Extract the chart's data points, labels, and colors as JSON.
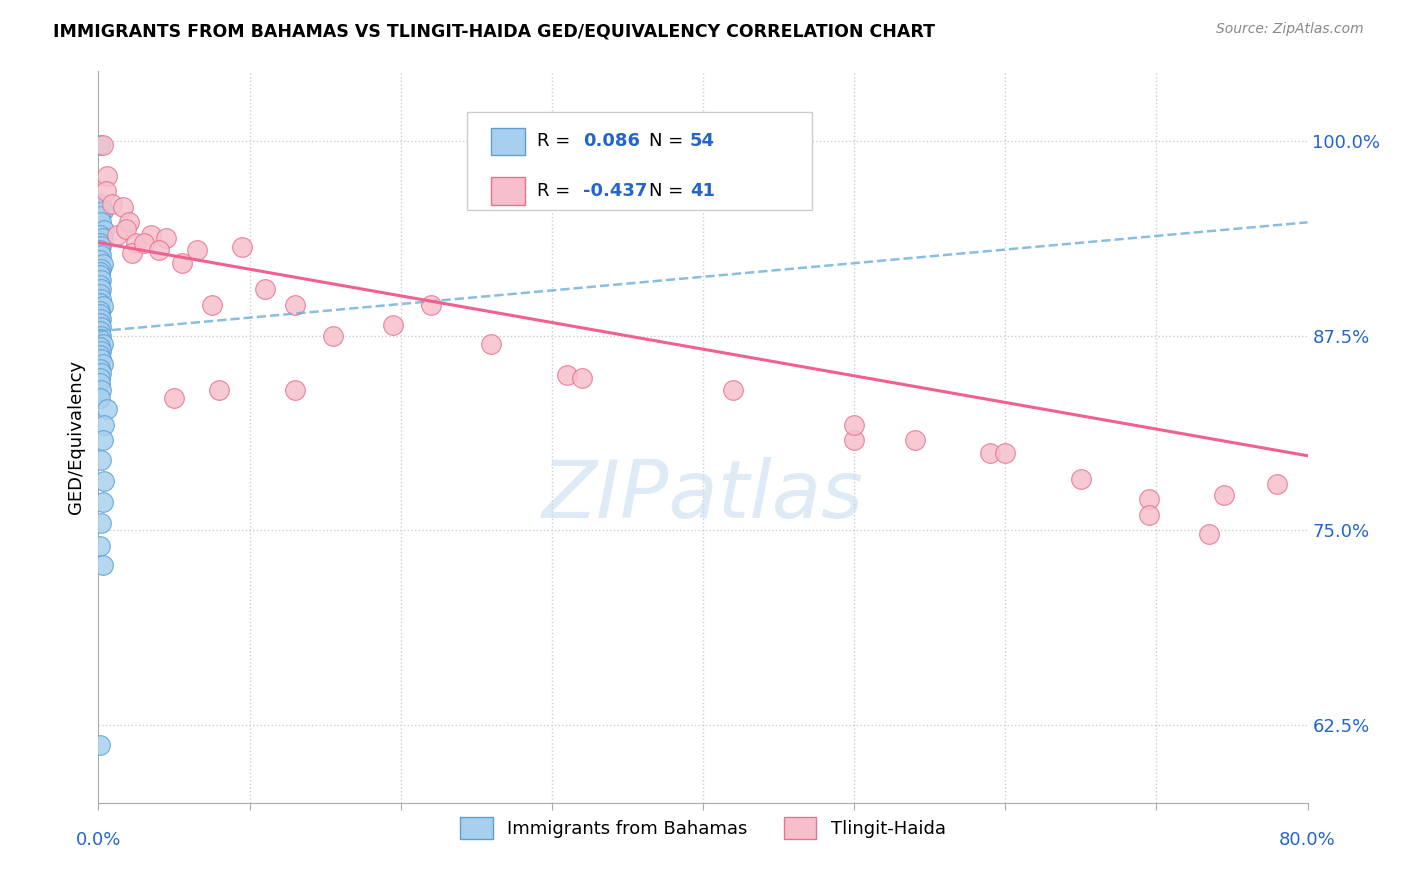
{
  "title": "IMMIGRANTS FROM BAHAMAS VS TLINGIT-HAIDA GED/EQUIVALENCY CORRELATION CHART",
  "source": "Source: ZipAtlas.com",
  "ylabel": "GED/Equivalency",
  "yticks": [
    0.625,
    0.75,
    0.875,
    1.0
  ],
  "ytick_labels": [
    "62.5%",
    "75.0%",
    "87.5%",
    "100.0%"
  ],
  "xmin": 0.0,
  "xmax": 0.8,
  "ymin": 0.575,
  "ymax": 1.045,
  "color_blue": "#A8D0EE",
  "color_blue_edge": "#5B9FD4",
  "color_pink": "#F5C0CC",
  "color_pink_edge": "#E87090",
  "color_trendline_blue": "#6AAED6",
  "color_trendline_pink": "#F06090",
  "watermark_color": "#C8DCF0",
  "blue_x": [
    0.001,
    0.002,
    0.003,
    0.001,
    0.002,
    0.004,
    0.001,
    0.003,
    0.001,
    0.002,
    0.001,
    0.002,
    0.001,
    0.003,
    0.002,
    0.001,
    0.001,
    0.002,
    0.001,
    0.002,
    0.001,
    0.002,
    0.001,
    0.003,
    0.001,
    0.001,
    0.002,
    0.001,
    0.002,
    0.001,
    0.002,
    0.001,
    0.003,
    0.001,
    0.002,
    0.001,
    0.002,
    0.003,
    0.001,
    0.002,
    0.001,
    0.001,
    0.002,
    0.001,
    0.006,
    0.004,
    0.003,
    0.002,
    0.004,
    0.003,
    0.002,
    0.001,
    0.003,
    0.001
  ],
  "blue_y": [
    0.998,
    0.96,
    0.955,
    0.952,
    0.948,
    0.943,
    0.94,
    0.938,
    0.935,
    0.933,
    0.93,
    0.927,
    0.924,
    0.921,
    0.918,
    0.916,
    0.914,
    0.911,
    0.908,
    0.905,
    0.902,
    0.899,
    0.896,
    0.894,
    0.891,
    0.889,
    0.886,
    0.883,
    0.881,
    0.878,
    0.875,
    0.873,
    0.87,
    0.868,
    0.865,
    0.863,
    0.86,
    0.857,
    0.854,
    0.851,
    0.848,
    0.845,
    0.84,
    0.835,
    0.828,
    0.818,
    0.808,
    0.795,
    0.782,
    0.768,
    0.755,
    0.74,
    0.728,
    0.612
  ],
  "pink_x": [
    0.003,
    0.006,
    0.005,
    0.009,
    0.016,
    0.012,
    0.02,
    0.018,
    0.025,
    0.022,
    0.035,
    0.03,
    0.045,
    0.04,
    0.055,
    0.065,
    0.075,
    0.095,
    0.11,
    0.13,
    0.155,
    0.195,
    0.26,
    0.31,
    0.5,
    0.54,
    0.59,
    0.65,
    0.695,
    0.745,
    0.695,
    0.735,
    0.05,
    0.08,
    0.13,
    0.22,
    0.32,
    0.42,
    0.5,
    0.6,
    0.78
  ],
  "pink_y": [
    0.998,
    0.978,
    0.968,
    0.96,
    0.958,
    0.94,
    0.948,
    0.944,
    0.935,
    0.928,
    0.94,
    0.935,
    0.938,
    0.93,
    0.922,
    0.93,
    0.895,
    0.932,
    0.905,
    0.895,
    0.875,
    0.882,
    0.87,
    0.85,
    0.808,
    0.808,
    0.8,
    0.783,
    0.77,
    0.773,
    0.76,
    0.748,
    0.835,
    0.84,
    0.84,
    0.895,
    0.848,
    0.84,
    0.818,
    0.8,
    0.78
  ],
  "trendline_blue_x0": 0.0,
  "trendline_blue_y0": 0.878,
  "trendline_blue_x1": 0.8,
  "trendline_blue_y1": 0.948,
  "trendline_pink_x0": 0.0,
  "trendline_pink_y0": 0.935,
  "trendline_pink_x1": 0.8,
  "trendline_pink_y1": 0.798
}
